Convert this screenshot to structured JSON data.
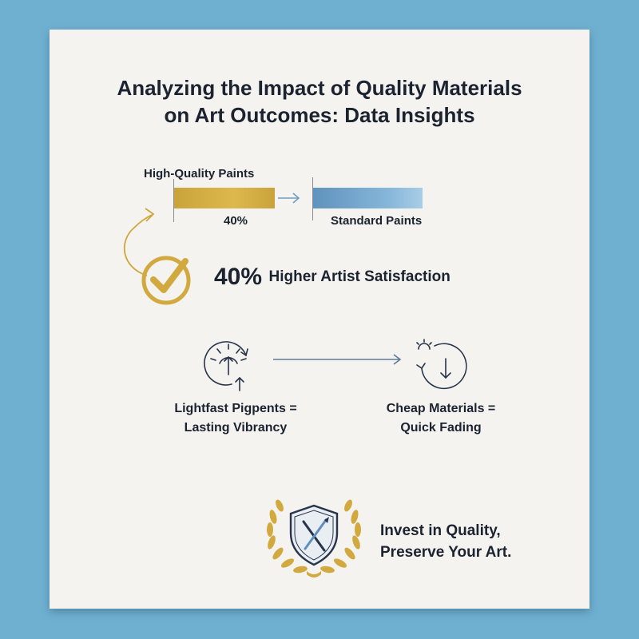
{
  "title": {
    "line1": "Analyzing the Impact of Quality Materials",
    "line2": "on Art Outcomes: Data Insights"
  },
  "comparison": {
    "high_quality_label": "High-Quality Paints",
    "high_quality_value_label": "40%",
    "standard_label": "Standard Paints",
    "colors": {
      "high_quality": "#d4ae43",
      "standard": "#7aaed5"
    }
  },
  "satisfaction": {
    "value": "40%",
    "text": "Higher Artist Satisfaction",
    "icon": "checkmark-circle-icon"
  },
  "lightfast": {
    "left_line1": "Lightfast Pigpents =",
    "left_line2": "Lasting Vibrancy",
    "left_icon": "sun-arrow-up-cycle-icon",
    "right_line1": "Cheap Materials =",
    "right_line2": "Quick Fading",
    "right_icon": "sun-arrow-down-cycle-icon"
  },
  "motto": {
    "line1": "Invest in Quality,",
    "line2": "Preserve Your Art.",
    "icon": "laurel-shield-brush-icon"
  }
}
